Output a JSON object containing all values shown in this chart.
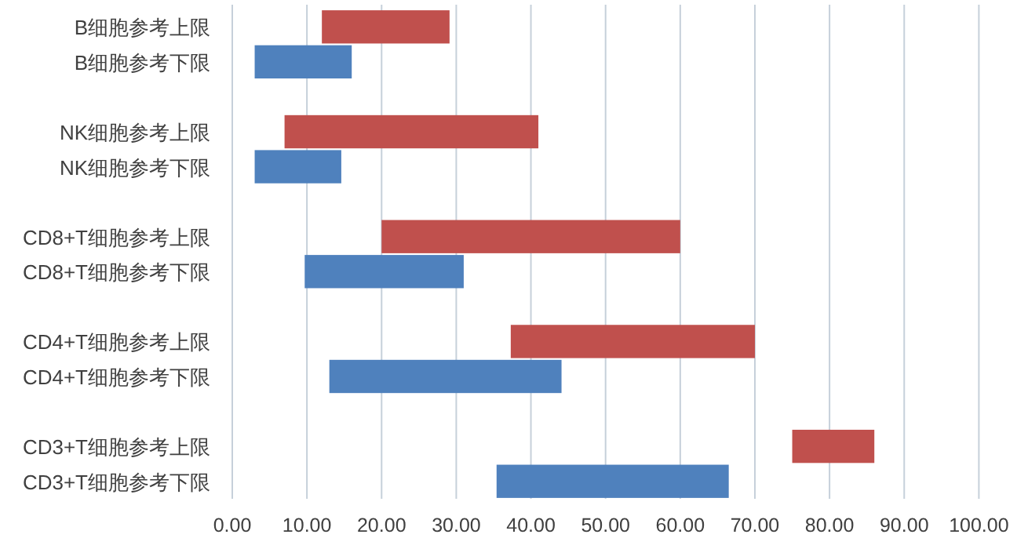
{
  "chart_data": {
    "type": "bar",
    "orientation": "horizontal",
    "categories": [
      "B细胞参考上限",
      "B细胞参考下限",
      "NK细胞参考上限",
      "NK细胞参考下限",
      "CD8+T细胞参考上限",
      "CD8+T细胞参考下限",
      "CD4+T细胞参考上限",
      "CD4+T细胞参考下限",
      "CD3+T细胞参考上限",
      "CD3+T细胞参考下限"
    ],
    "base": [
      12,
      3,
      7,
      3,
      20,
      9.7,
      37.3,
      13,
      75,
      35.4
    ],
    "values": [
      17.1,
      13,
      34,
      11.6,
      40,
      21.3,
      32.7,
      31.1,
      11,
      31.1
    ],
    "colors": [
      "#c0504d",
      "#4f81bd",
      "#c0504d",
      "#4f81bd",
      "#c0504d",
      "#4f81bd",
      "#c0504d",
      "#4f81bd",
      "#c0504d",
      "#4f81bd"
    ],
    "xlim": [
      0,
      100
    ],
    "xticks": [
      {
        "value": 0,
        "label": "0.00"
      },
      {
        "value": 10,
        "label": "10.00"
      },
      {
        "value": 20,
        "label": "20.00"
      },
      {
        "value": 30,
        "label": "30.00"
      },
      {
        "value": 40,
        "label": "40.00"
      },
      {
        "value": 50,
        "label": "50.00"
      },
      {
        "value": 60,
        "label": "60.00"
      },
      {
        "value": 70,
        "label": "70.00"
      },
      {
        "value": 80,
        "label": "80.00"
      },
      {
        "value": 90,
        "label": "90.00"
      },
      {
        "value": 100,
        "label": "100.00"
      }
    ],
    "grid": "x"
  }
}
